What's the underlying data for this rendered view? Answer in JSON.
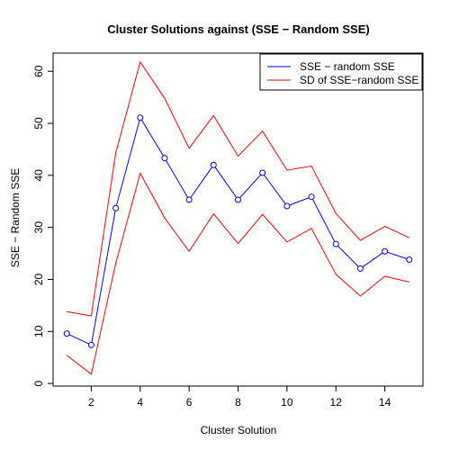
{
  "chart_data": {
    "type": "line",
    "title": "Cluster Solutions against (SSE − Random SSE)",
    "xlabel": "Cluster Solution",
    "ylabel": "SSE − Random SSE",
    "xlim": [
      0.44,
      15.56
    ],
    "ylim": [
      -0.5,
      63.5
    ],
    "x_ticks": [
      2,
      4,
      6,
      8,
      10,
      12,
      14
    ],
    "y_ticks": [
      0,
      10,
      20,
      30,
      40,
      50,
      60
    ],
    "grid": false,
    "legend_position": "top-right",
    "x": [
      1,
      2,
      3,
      4,
      5,
      6,
      7,
      8,
      9,
      10,
      11,
      12,
      13,
      14,
      15
    ],
    "series": [
      {
        "name": "SSE − random SSE",
        "color": "#0000ff",
        "markers": "open-circle",
        "values": [
          9.6,
          7.4,
          33.7,
          51.1,
          43.3,
          35.3,
          42.0,
          35.3,
          40.5,
          34.1,
          35.9,
          26.8,
          22.1,
          25.4,
          23.8
        ]
      },
      {
        "name": "SD of SSE−random SSE",
        "color": "#ff0000",
        "markers": "none",
        "values": [
          13.8,
          13.0,
          44.3,
          61.8,
          54.8,
          45.2,
          51.5,
          43.7,
          48.5,
          41.0,
          41.8,
          32.7,
          27.5,
          30.2,
          28.0
        ]
      },
      {
        "name": "",
        "color": "#ff0000",
        "markers": "none",
        "values": [
          5.4,
          1.8,
          23.1,
          40.4,
          31.8,
          25.4,
          32.6,
          26.9,
          32.5,
          27.2,
          29.8,
          21.0,
          16.8,
          20.6,
          19.5
        ]
      }
    ]
  }
}
